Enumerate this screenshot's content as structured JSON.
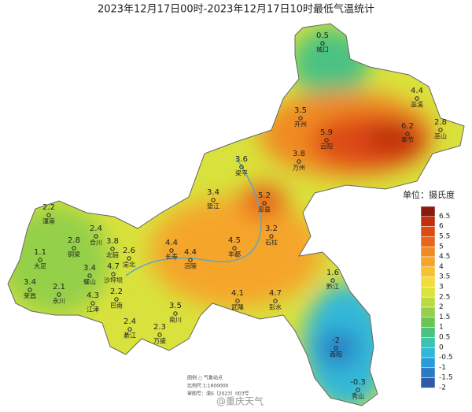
{
  "title": "2023年12月17日00时-2023年12月17日10时最低气温统计",
  "stations": [
    {
      "name": "城口",
      "value": 0.5
    },
    {
      "name": "巫溪",
      "value": 4.4
    },
    {
      "name": "开州",
      "value": 3.5
    },
    {
      "name": "云阳",
      "value": 5.9
    },
    {
      "name": "奉节",
      "value": 6.2
    },
    {
      "name": "巫山",
      "value": 2.8
    },
    {
      "name": "万州",
      "value": 3.8
    },
    {
      "name": "梁平",
      "value": 3.6
    },
    {
      "name": "忠县",
      "value": 5.2
    },
    {
      "name": "垫江",
      "value": 3.4
    },
    {
      "name": "潼南",
      "value": 2.2
    },
    {
      "name": "合川",
      "value": 2.4
    },
    {
      "name": "铜梁",
      "value": 2.8
    },
    {
      "name": "北碚",
      "value": 3.8
    },
    {
      "name": "渝北",
      "value": 2.6
    },
    {
      "name": "长寿",
      "value": 4.4
    },
    {
      "name": "丰都",
      "value": 4.5
    },
    {
      "name": "石柱",
      "value": 3.2
    },
    {
      "name": "大足",
      "value": 1.1
    },
    {
      "name": "涪陵",
      "value": 4.4
    },
    {
      "name": "璧山",
      "value": 3.4
    },
    {
      "name": "沙坪坝",
      "value": 4.7
    },
    {
      "name": "荣昌",
      "value": 3.4
    },
    {
      "name": "永川",
      "value": 2.1
    },
    {
      "name": "江津",
      "value": 4.3
    },
    {
      "name": "巴南",
      "value": 2.2
    },
    {
      "name": "黔江",
      "value": 1.6
    },
    {
      "name": "武隆",
      "value": 4.1
    },
    {
      "name": "彭水",
      "value": 4.7
    },
    {
      "name": "南川",
      "value": 3.5
    },
    {
      "name": "綦江",
      "value": 2.4
    },
    {
      "name": "万盛",
      "value": 2.3
    },
    {
      "name": "酉阳",
      "value": -2
    },
    {
      "name": "秀山",
      "value": -0.3
    }
  ],
  "legend": {
    "title": "单位：摄氏度",
    "levels": [
      6.5,
      6,
      5.5,
      5,
      4.5,
      4,
      3.5,
      3,
      2.5,
      2,
      1.5,
      1,
      0.5,
      0,
      -0.5,
      -1,
      -1.5,
      -2
    ],
    "colors": [
      "#8b1a0e",
      "#c0300f",
      "#dd4a12",
      "#e8651b",
      "#f08a24",
      "#f5a52c",
      "#f7c232",
      "#f2dc3a",
      "#dbe43c",
      "#b8dc40",
      "#94d04a",
      "#6cc357",
      "#4cc281",
      "#3cc3b0",
      "#30b8d8",
      "#2a9bd8",
      "#2c79c4",
      "#2f5aa8"
    ]
  },
  "notes": [
    "图例 ○ 气象站点",
    "比例尺 1:1600000",
    "审图号：渝S（2023）003号"
  ],
  "watermark": "@重庆天气"
}
